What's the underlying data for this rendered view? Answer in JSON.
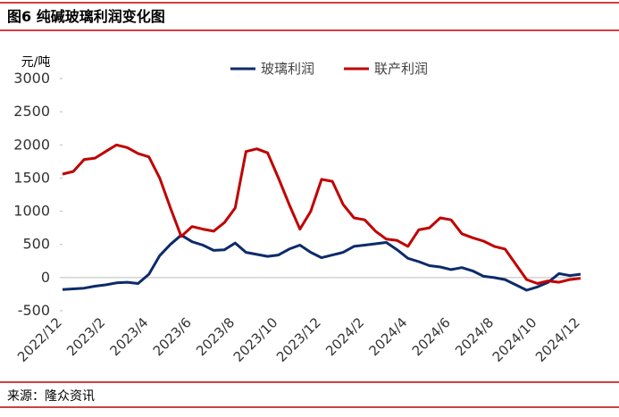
{
  "header": {
    "title": "图6  纯碱玻璃利润变化图"
  },
  "chart_data": {
    "type": "line",
    "y_unit": "元/吨",
    "categories": [
      "2022/12",
      null,
      null,
      null,
      "2023/2",
      null,
      null,
      null,
      "2023/4",
      null,
      null,
      null,
      "2023/6",
      null,
      null,
      null,
      "2023/8",
      null,
      null,
      null,
      "2023/10",
      null,
      null,
      null,
      "2023/12",
      null,
      null,
      null,
      "2024/2",
      null,
      null,
      null,
      "2024/4",
      null,
      null,
      null,
      "2024/6",
      null,
      null,
      null,
      "2024/8",
      null,
      null,
      null,
      "2024/10",
      null,
      null,
      null,
      "2024/12"
    ],
    "series": [
      {
        "name": "玻璃利润",
        "color": "#0d2b6b",
        "values": [
          -180,
          -170,
          -160,
          -130,
          -110,
          -80,
          -70,
          -90,
          50,
          330,
          500,
          640,
          540,
          490,
          410,
          420,
          520,
          380,
          350,
          320,
          340,
          430,
          490,
          380,
          300,
          340,
          380,
          470,
          490,
          510,
          530,
          420,
          290,
          240,
          180,
          160,
          120,
          150,
          100,
          20,
          0,
          -30,
          -110,
          -190,
          -140,
          -70,
          60,
          30,
          50
        ]
      },
      {
        "name": "联产利润",
        "color": "#c00000",
        "values": [
          1560,
          1600,
          1780,
          1800,
          1900,
          2000,
          1960,
          1870,
          1820,
          1500,
          1050,
          620,
          770,
          730,
          700,
          830,
          1050,
          1900,
          1940,
          1880,
          1500,
          1100,
          730,
          1000,
          1480,
          1450,
          1100,
          900,
          870,
          700,
          580,
          560,
          470,
          720,
          750,
          900,
          870,
          660,
          600,
          550,
          470,
          430,
          200,
          -30,
          -90,
          -50,
          -70,
          -30,
          -10
        ]
      }
    ],
    "ylim": [
      -500,
      3000
    ],
    "yticks": [
      -500,
      0,
      500,
      1000,
      1500,
      2000,
      2500,
      3000
    ],
    "legend": "top"
  },
  "footer": {
    "source": "来源：隆众资讯"
  }
}
